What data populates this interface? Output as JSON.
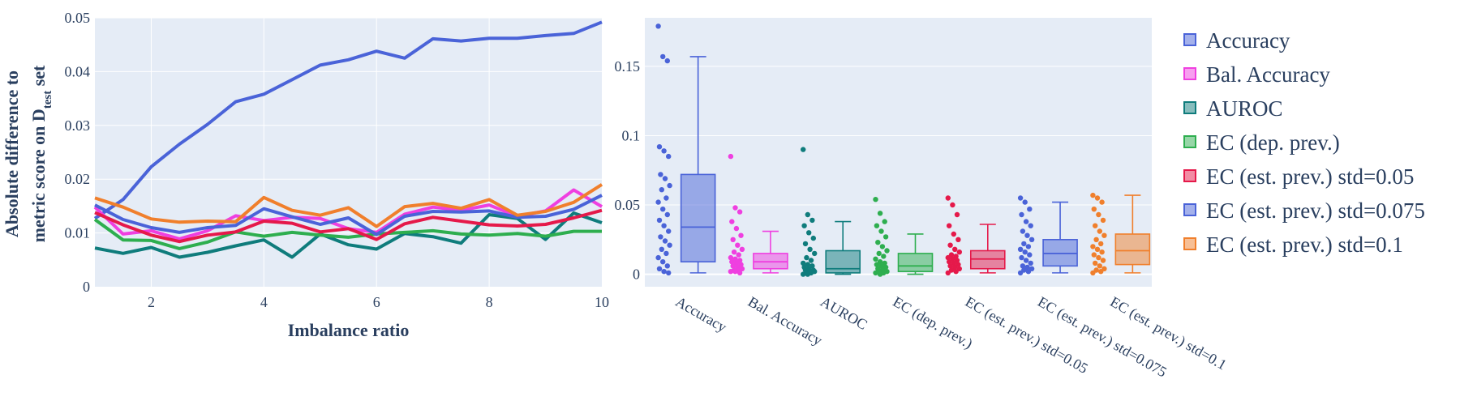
{
  "chart_data": [
    {
      "type": "line",
      "xlabel": "Imbalance ratio",
      "ylabel_line1": "Absolute difference to",
      "ylabel_line2_prefix": "metric score on D",
      "ylabel_subscript": "test",
      "ylabel_line2_suffix": " set",
      "xlim": [
        1,
        10
      ],
      "ylim": [
        0,
        0.05
      ],
      "x_ticks": [
        2,
        4,
        6,
        8,
        10
      ],
      "y_ticks": [
        0,
        0.01,
        0.02,
        0.03,
        0.04,
        0.05
      ],
      "y_tick_labels": [
        "0",
        "0.01",
        "0.02",
        "0.03",
        "0.04",
        "0.05"
      ],
      "grid": true,
      "x": [
        1,
        1.5,
        2,
        2.5,
        3,
        3.5,
        4,
        4.5,
        5,
        5.5,
        6,
        6.5,
        7,
        7.5,
        8,
        8.5,
        9,
        9.5,
        10
      ],
      "series": [
        {
          "name": "Accuracy",
          "color": "#4a63d8",
          "values": [
            0.0127,
            0.0162,
            0.0223,
            0.0265,
            0.0302,
            0.0344,
            0.0358,
            0.0385,
            0.0412,
            0.0422,
            0.0438,
            0.0425,
            0.0461,
            0.0457,
            0.0462,
            0.0462,
            0.0467,
            0.0471,
            0.0492
          ]
        },
        {
          "name": "Bal. Accuracy",
          "color": "#ef3fe0",
          "values": [
            0.0148,
            0.0098,
            0.0104,
            0.0089,
            0.0104,
            0.0132,
            0.0123,
            0.0129,
            0.0127,
            0.0108,
            0.0101,
            0.0135,
            0.0148,
            0.0142,
            0.0152,
            0.0131,
            0.0141,
            0.018,
            0.0149
          ]
        },
        {
          "name": "AUROC",
          "color": "#0f7c7c",
          "values": [
            0.0072,
            0.0062,
            0.0073,
            0.0055,
            0.0064,
            0.0076,
            0.0087,
            0.0055,
            0.0098,
            0.0078,
            0.007,
            0.0099,
            0.0093,
            0.0081,
            0.0134,
            0.0127,
            0.0088,
            0.0137,
            0.0119
          ]
        },
        {
          "name": "EC (dep. prev.)",
          "color": "#2eae4f",
          "values": [
            0.0125,
            0.0087,
            0.0086,
            0.0071,
            0.0083,
            0.0102,
            0.0094,
            0.0101,
            0.0096,
            0.0092,
            0.0098,
            0.0101,
            0.0104,
            0.0098,
            0.0096,
            0.0099,
            0.0094,
            0.0103,
            0.0103
          ]
        },
        {
          "name": "EC (est. prev.) std=0.05",
          "color": "#e5194a",
          "values": [
            0.0138,
            0.0115,
            0.0096,
            0.0084,
            0.0096,
            0.0102,
            0.0122,
            0.0118,
            0.0102,
            0.0108,
            0.0088,
            0.0117,
            0.0129,
            0.0122,
            0.0115,
            0.0113,
            0.0116,
            0.0128,
            0.0142
          ]
        },
        {
          "name": "EC (est. prev.) std=0.075",
          "color": "#4a63d8",
          "values": [
            0.0152,
            0.0125,
            0.011,
            0.0101,
            0.011,
            0.0114,
            0.0145,
            0.013,
            0.0116,
            0.0128,
            0.0097,
            0.0131,
            0.014,
            0.0139,
            0.0141,
            0.0129,
            0.0131,
            0.0144,
            0.017
          ]
        },
        {
          "name": "EC (est. prev.) std=0.1",
          "color": "#f07f2c",
          "values": [
            0.0165,
            0.0148,
            0.0126,
            0.012,
            0.0122,
            0.0121,
            0.0166,
            0.0142,
            0.0133,
            0.0147,
            0.0112,
            0.0149,
            0.0155,
            0.0146,
            0.0162,
            0.0133,
            0.014,
            0.0157,
            0.019
          ]
        }
      ]
    },
    {
      "type": "box",
      "ylim": [
        -0.009,
        0.185
      ],
      "y_ticks": [
        0,
        0.05,
        0.1,
        0.15
      ],
      "y_tick_labels": [
        "0",
        "0.05",
        "0.1",
        "0.15"
      ],
      "grid": true,
      "categories": [
        "Accuracy",
        "Bal. Accuracy",
        "AUROC",
        "EC (dep. prev.)",
        "EC (est. prev.) std=0.05",
        "EC (est. prev.) std=0.075",
        "EC (est. prev.) std=0.1"
      ],
      "boxes": [
        {
          "name": "Accuracy",
          "color": "#4a63d8",
          "fill": "rgba(74,99,216,0.5)",
          "q1": 0.009,
          "median": 0.034,
          "q3": 0.072,
          "whisker_low": 0.001,
          "whisker_high": 0.157,
          "points": [
            0.179,
            0.157,
            0.154,
            0.092,
            0.089,
            0.085,
            0.072,
            0.069,
            0.064,
            0.061,
            0.055,
            0.052,
            0.047,
            0.043,
            0.039,
            0.035,
            0.031,
            0.027,
            0.024,
            0.021,
            0.018,
            0.015,
            0.012,
            0.009,
            0.006,
            0.004,
            0.002,
            0.001
          ]
        },
        {
          "name": "Bal. Accuracy",
          "color": "#ef3fe0",
          "fill": "rgba(239,63,224,0.5)",
          "q1": 0.004,
          "median": 0.009,
          "q3": 0.015,
          "whisker_low": 0.001,
          "whisker_high": 0.031,
          "points": [
            0.085,
            0.048,
            0.045,
            0.038,
            0.033,
            0.028,
            0.025,
            0.021,
            0.018,
            0.016,
            0.014,
            0.012,
            0.011,
            0.01,
            0.009,
            0.008,
            0.007,
            0.006,
            0.005,
            0.004,
            0.003,
            0.003,
            0.002,
            0.002,
            0.001
          ]
        },
        {
          "name": "AUROC",
          "color": "#0f7c7c",
          "fill": "rgba(15,124,124,0.5)",
          "q1": 0.001,
          "median": 0.004,
          "q3": 0.017,
          "whisker_low": 0.0,
          "whisker_high": 0.038,
          "points": [
            0.09,
            0.043,
            0.039,
            0.035,
            0.03,
            0.026,
            0.022,
            0.018,
            0.015,
            0.012,
            0.01,
            0.008,
            0.007,
            0.006,
            0.005,
            0.004,
            0.003,
            0.003,
            0.002,
            0.002,
            0.001,
            0.001,
            0.0,
            0.0
          ]
        },
        {
          "name": "EC (dep. prev.)",
          "color": "#2eae4f",
          "fill": "rgba(46,174,79,0.5)",
          "q1": 0.002,
          "median": 0.006,
          "q3": 0.015,
          "whisker_low": 0.0,
          "whisker_high": 0.029,
          "points": [
            0.054,
            0.044,
            0.038,
            0.035,
            0.031,
            0.027,
            0.023,
            0.02,
            0.017,
            0.015,
            0.013,
            0.011,
            0.009,
            0.008,
            0.007,
            0.006,
            0.005,
            0.004,
            0.003,
            0.002,
            0.002,
            0.001,
            0.001,
            0.0
          ]
        },
        {
          "name": "EC (est. prev.) std=0.05",
          "color": "#e5194a",
          "fill": "rgba(229,25,74,0.5)",
          "q1": 0.004,
          "median": 0.011,
          "q3": 0.017,
          "whisker_low": 0.001,
          "whisker_high": 0.036,
          "points": [
            0.055,
            0.05,
            0.043,
            0.035,
            0.029,
            0.025,
            0.021,
            0.018,
            0.016,
            0.014,
            0.013,
            0.012,
            0.011,
            0.01,
            0.009,
            0.008,
            0.007,
            0.006,
            0.005,
            0.004,
            0.003,
            0.002,
            0.001
          ]
        },
        {
          "name": "EC (est. prev.) std=0.075",
          "color": "#4a63d8",
          "fill": "rgba(74,99,216,0.5)",
          "q1": 0.006,
          "median": 0.015,
          "q3": 0.025,
          "whisker_low": 0.001,
          "whisker_high": 0.052,
          "points": [
            0.055,
            0.052,
            0.047,
            0.043,
            0.038,
            0.035,
            0.031,
            0.028,
            0.025,
            0.022,
            0.02,
            0.018,
            0.016,
            0.014,
            0.012,
            0.01,
            0.008,
            0.006,
            0.005,
            0.004,
            0.003,
            0.002,
            0.001
          ]
        },
        {
          "name": "EC (est. prev.) std=0.1",
          "color": "#f07f2c",
          "fill": "rgba(240,127,44,0.5)",
          "q1": 0.007,
          "median": 0.017,
          "q3": 0.029,
          "whisker_low": 0.001,
          "whisker_high": 0.057,
          "points": [
            0.057,
            0.055,
            0.052,
            0.047,
            0.043,
            0.039,
            0.035,
            0.031,
            0.028,
            0.025,
            0.022,
            0.02,
            0.018,
            0.016,
            0.014,
            0.012,
            0.01,
            0.008,
            0.006,
            0.004,
            0.003,
            0.002,
            0.001
          ]
        }
      ]
    }
  ],
  "legend": {
    "placement": "right",
    "items": [
      {
        "label": "Accuracy",
        "color": "#4a63d8",
        "fill": "rgba(74,99,216,0.5)"
      },
      {
        "label": "Bal. Accuracy",
        "color": "#ef3fe0",
        "fill": "rgba(239,63,224,0.5)"
      },
      {
        "label": "AUROC",
        "color": "#0f7c7c",
        "fill": "rgba(15,124,124,0.5)"
      },
      {
        "label": "EC (dep. prev.)",
        "color": "#2eae4f",
        "fill": "rgba(46,174,79,0.5)"
      },
      {
        "label": "EC (est. prev.) std=0.05",
        "color": "#e5194a",
        "fill": "rgba(229,25,74,0.5)"
      },
      {
        "label": "EC (est. prev.) std=0.075",
        "color": "#4a63d8",
        "fill": "rgba(74,99,216,0.5)"
      },
      {
        "label": "EC (est. prev.) std=0.1",
        "color": "#f07f2c",
        "fill": "rgba(240,127,44,0.5)"
      }
    ]
  },
  "colors": {
    "plot_bg": "#e5ecf6",
    "grid": "#ffffff",
    "text": "#2a3f5f"
  }
}
